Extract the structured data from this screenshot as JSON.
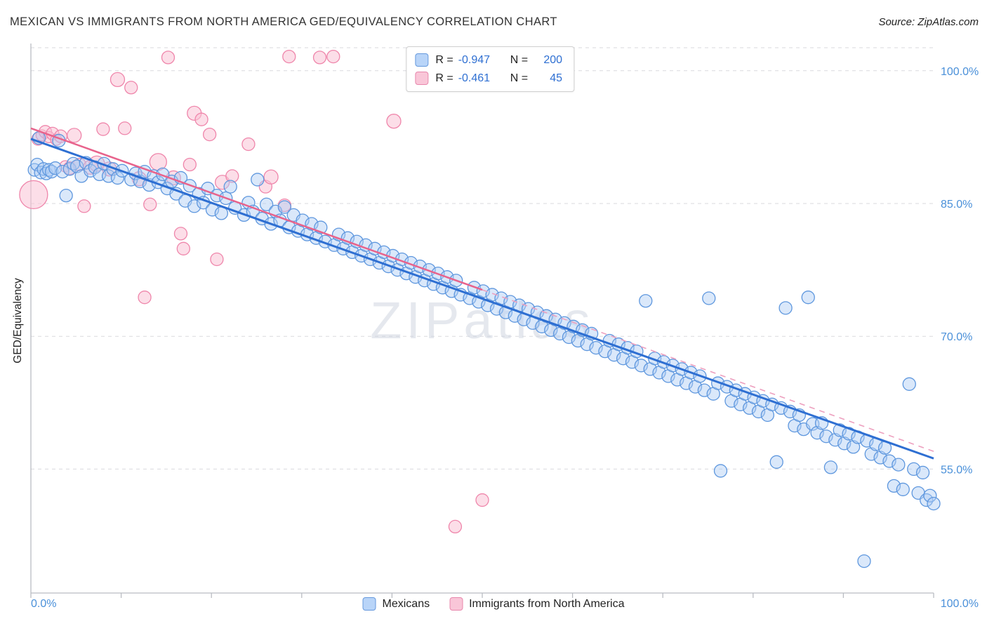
{
  "header": {
    "title": "MEXICAN VS IMMIGRANTS FROM NORTH AMERICA GED/EQUIVALENCY CORRELATION CHART",
    "source": "Source: ZipAtlas.com"
  },
  "watermark": "ZIPatlas",
  "axes": {
    "y_label": "GED/Equivalency",
    "x_min_label": "0.0%",
    "x_max_label": "100.0%"
  },
  "legend": {
    "series": [
      {
        "label": "Mexicans",
        "r_label": "R =",
        "r": "-0.947",
        "n_label": "N =",
        "n": "200"
      },
      {
        "label": "Immigrants from North America",
        "r_label": "R =",
        "r": "-0.461",
        "n_label": "N =",
        "n": "45"
      }
    ]
  },
  "colors": {
    "blue_stroke": "#5e97de",
    "blue_fill": "#aecdf3",
    "blue_trend": "#2e6fd2",
    "pink_stroke": "#ef86ab",
    "pink_fill": "#f9c2d6",
    "pink_trend": "#e8638c",
    "axis_label_blue": "#4a90d9",
    "grid": "#dadade"
  },
  "chart_data": {
    "type": "scatter",
    "title": "MEXICAN VS IMMIGRANTS FROM NORTH AMERICA GED/EQUIVALENCY CORRELATION CHART",
    "xlabel": "",
    "ylabel": "GED/Equivalency",
    "x_range": [
      0,
      100
    ],
    "y_range": [
      41,
      102.6
    ],
    "grid": true,
    "legend_position": "top-center",
    "y_ticks": [
      {
        "v": 100,
        "label": "100.0%"
      },
      {
        "v": 85,
        "label": "85.0%"
      },
      {
        "v": 70,
        "label": "70.0%"
      },
      {
        "v": 55,
        "label": "55.0%"
      }
    ],
    "series": [
      {
        "name": "Mexicans",
        "R": -0.947,
        "N": 200,
        "points": [
          [
            0.4,
            88.8
          ],
          [
            0.7,
            89.4
          ],
          [
            0.9,
            92.4
          ],
          [
            1.1,
            88.5
          ],
          [
            1.4,
            88.9
          ],
          [
            1.7,
            88.4
          ],
          [
            2.0,
            88.8
          ],
          [
            2.3,
            88.6
          ],
          [
            2.7,
            89.0
          ],
          [
            3.1,
            92.1
          ],
          [
            3.5,
            88.6
          ],
          [
            3.9,
            85.9
          ],
          [
            4.3,
            88.9
          ],
          [
            4.7,
            89.5
          ],
          [
            5.1,
            89.2
          ],
          [
            5.6,
            88.1
          ],
          [
            6.1,
            89.6
          ],
          [
            6.6,
            88.7
          ],
          [
            7.1,
            89.1
          ],
          [
            7.6,
            88.3
          ],
          [
            8.1,
            89.5
          ],
          [
            8.6,
            88.1
          ],
          [
            9.1,
            88.9
          ],
          [
            9.6,
            87.9
          ],
          [
            10.1,
            88.7
          ],
          [
            11.1,
            87.7
          ],
          [
            11.6,
            88.4
          ],
          [
            12.1,
            87.5
          ],
          [
            12.6,
            88.6
          ],
          [
            13.1,
            87.1
          ],
          [
            13.6,
            88.1
          ],
          [
            14.1,
            87.4
          ],
          [
            14.6,
            88.3
          ],
          [
            15.1,
            86.7
          ],
          [
            15.6,
            87.5
          ],
          [
            16.1,
            86.1
          ],
          [
            16.6,
            87.9
          ],
          [
            17.1,
            85.3
          ],
          [
            17.6,
            87.0
          ],
          [
            18.1,
            84.7
          ],
          [
            18.6,
            86.1
          ],
          [
            19.1,
            85.1
          ],
          [
            19.6,
            86.7
          ],
          [
            20.1,
            84.3
          ],
          [
            20.6,
            85.9
          ],
          [
            21.1,
            83.9
          ],
          [
            21.6,
            85.6
          ],
          [
            22.1,
            86.9
          ],
          [
            22.6,
            84.5
          ],
          [
            23.6,
            83.7
          ],
          [
            24.1,
            85.1
          ],
          [
            24.6,
            84.1
          ],
          [
            25.1,
            87.7
          ],
          [
            25.6,
            83.3
          ],
          [
            26.1,
            84.9
          ],
          [
            26.6,
            82.7
          ],
          [
            27.1,
            84.1
          ],
          [
            27.6,
            83.1
          ],
          [
            28.1,
            84.6
          ],
          [
            28.6,
            82.3
          ],
          [
            29.1,
            83.7
          ],
          [
            29.6,
            81.9
          ],
          [
            30.1,
            83.1
          ],
          [
            30.6,
            81.5
          ],
          [
            31.1,
            82.7
          ],
          [
            31.6,
            81.1
          ],
          [
            32.1,
            82.3
          ],
          [
            32.6,
            80.7
          ],
          [
            33.6,
            80.3
          ],
          [
            34.1,
            81.5
          ],
          [
            34.6,
            79.9
          ],
          [
            35.1,
            81.1
          ],
          [
            35.6,
            79.5
          ],
          [
            36.1,
            80.7
          ],
          [
            36.6,
            79.1
          ],
          [
            37.1,
            80.3
          ],
          [
            37.6,
            78.7
          ],
          [
            38.1,
            79.9
          ],
          [
            38.6,
            78.3
          ],
          [
            39.1,
            79.5
          ],
          [
            39.6,
            77.9
          ],
          [
            40.1,
            79.1
          ],
          [
            40.6,
            77.5
          ],
          [
            41.1,
            78.7
          ],
          [
            41.6,
            77.1
          ],
          [
            42.1,
            78.3
          ],
          [
            42.6,
            76.7
          ],
          [
            43.1,
            77.9
          ],
          [
            43.6,
            76.3
          ],
          [
            44.1,
            77.5
          ],
          [
            44.6,
            75.9
          ],
          [
            45.1,
            77.1
          ],
          [
            45.6,
            75.5
          ],
          [
            46.1,
            76.7
          ],
          [
            46.6,
            75.1
          ],
          [
            47.1,
            76.3
          ],
          [
            47.6,
            74.7
          ],
          [
            48.6,
            74.3
          ],
          [
            49.1,
            75.5
          ],
          [
            49.6,
            73.9
          ],
          [
            50.1,
            75.1
          ],
          [
            50.6,
            73.5
          ],
          [
            51.1,
            74.7
          ],
          [
            51.6,
            73.1
          ],
          [
            52.1,
            74.3
          ],
          [
            52.6,
            72.7
          ],
          [
            53.1,
            73.9
          ],
          [
            53.6,
            72.3
          ],
          [
            54.1,
            73.5
          ],
          [
            54.6,
            71.9
          ],
          [
            55.1,
            73.1
          ],
          [
            55.6,
            71.5
          ],
          [
            56.1,
            72.7
          ],
          [
            56.6,
            71.1
          ],
          [
            57.1,
            72.3
          ],
          [
            57.6,
            70.7
          ],
          [
            58.1,
            71.9
          ],
          [
            58.6,
            70.3
          ],
          [
            59.1,
            71.5
          ],
          [
            59.6,
            69.9
          ],
          [
            60.1,
            71.1
          ],
          [
            60.6,
            69.5
          ],
          [
            61.1,
            70.7
          ],
          [
            61.6,
            69.1
          ],
          [
            62.1,
            70.3
          ],
          [
            62.6,
            68.7
          ],
          [
            63.6,
            68.3
          ],
          [
            64.1,
            69.5
          ],
          [
            64.6,
            67.9
          ],
          [
            65.1,
            69.1
          ],
          [
            65.6,
            67.5
          ],
          [
            66.1,
            68.7
          ],
          [
            66.6,
            67.1
          ],
          [
            67.1,
            68.3
          ],
          [
            67.6,
            66.7
          ],
          [
            68.1,
            74.0
          ],
          [
            68.6,
            66.3
          ],
          [
            69.1,
            67.5
          ],
          [
            69.6,
            65.9
          ],
          [
            70.1,
            67.1
          ],
          [
            70.6,
            65.5
          ],
          [
            71.1,
            66.7
          ],
          [
            71.6,
            65.1
          ],
          [
            72.1,
            66.3
          ],
          [
            72.6,
            64.7
          ],
          [
            73.1,
            65.9
          ],
          [
            73.6,
            64.3
          ],
          [
            74.1,
            65.5
          ],
          [
            74.6,
            63.9
          ],
          [
            75.1,
            74.3
          ],
          [
            75.6,
            63.5
          ],
          [
            76.1,
            64.7
          ],
          [
            76.4,
            54.8
          ],
          [
            77.1,
            64.3
          ],
          [
            77.6,
            62.7
          ],
          [
            78.1,
            63.9
          ],
          [
            78.6,
            62.3
          ],
          [
            79.1,
            63.5
          ],
          [
            79.6,
            61.9
          ],
          [
            80.1,
            63.1
          ],
          [
            80.6,
            61.5
          ],
          [
            81.1,
            62.7
          ],
          [
            81.6,
            61.1
          ],
          [
            82.1,
            62.3
          ],
          [
            82.6,
            55.8
          ],
          [
            83.1,
            61.9
          ],
          [
            83.6,
            73.2
          ],
          [
            84.1,
            61.5
          ],
          [
            84.6,
            59.9
          ],
          [
            85.1,
            61.1
          ],
          [
            85.6,
            59.5
          ],
          [
            86.1,
            74.4
          ],
          [
            86.6,
            60.1
          ],
          [
            87.1,
            59.1
          ],
          [
            87.6,
            60.2
          ],
          [
            88.1,
            58.7
          ],
          [
            88.6,
            55.2
          ],
          [
            89.1,
            58.3
          ],
          [
            89.6,
            59.4
          ],
          [
            90.1,
            57.9
          ],
          [
            90.6,
            59.0
          ],
          [
            91.1,
            57.5
          ],
          [
            91.6,
            58.6
          ],
          [
            92.3,
            44.6
          ],
          [
            92.6,
            58.2
          ],
          [
            93.1,
            56.7
          ],
          [
            93.6,
            57.8
          ],
          [
            94.1,
            56.3
          ],
          [
            94.6,
            57.4
          ],
          [
            95.1,
            55.9
          ],
          [
            95.6,
            53.1
          ],
          [
            96.1,
            55.5
          ],
          [
            96.6,
            52.7
          ],
          [
            97.3,
            64.6
          ],
          [
            97.8,
            55.0
          ],
          [
            98.3,
            52.3
          ],
          [
            98.8,
            54.6
          ],
          [
            99.2,
            51.5
          ],
          [
            99.6,
            52.0
          ],
          [
            100.0,
            51.1
          ]
        ]
      },
      {
        "name": "Immigrants from North America",
        "R": -0.461,
        "N": 45,
        "points": [
          [
            0.3,
            86.0,
            20
          ],
          [
            0.8,
            92.3,
            9
          ],
          [
            1.2,
            92.7,
            8
          ],
          [
            1.6,
            93.1,
            9
          ],
          [
            2.0,
            92.5,
            8
          ],
          [
            2.4,
            92.9,
            9
          ],
          [
            2.8,
            92.2,
            8
          ],
          [
            3.3,
            92.6,
            9
          ],
          [
            3.8,
            89.2,
            8
          ],
          [
            4.3,
            89.0,
            9
          ],
          [
            4.8,
            92.7,
            10
          ],
          [
            5.4,
            89.4,
            9
          ],
          [
            5.9,
            84.7,
            9
          ],
          [
            6.6,
            89.1,
            10
          ],
          [
            7.3,
            89.5,
            11
          ],
          [
            8.0,
            93.4,
            9
          ],
          [
            8.7,
            88.9,
            10
          ],
          [
            9.6,
            99.0,
            10
          ],
          [
            10.4,
            93.5,
            9
          ],
          [
            11.1,
            98.1,
            9
          ],
          [
            12.0,
            87.8,
            10
          ],
          [
            12.6,
            74.4,
            9
          ],
          [
            13.2,
            84.9,
            9
          ],
          [
            14.1,
            89.7,
            12
          ],
          [
            15.2,
            101.5,
            9
          ],
          [
            15.8,
            87.9,
            10
          ],
          [
            16.6,
            81.6,
            9
          ],
          [
            16.9,
            79.9,
            9
          ],
          [
            17.6,
            89.4,
            9
          ],
          [
            18.1,
            95.2,
            10
          ],
          [
            18.9,
            94.5,
            9
          ],
          [
            19.8,
            92.8,
            9
          ],
          [
            20.6,
            78.7,
            9
          ],
          [
            21.2,
            87.4,
            10
          ],
          [
            22.3,
            88.1,
            9
          ],
          [
            24.1,
            91.7,
            9
          ],
          [
            26.0,
            86.9,
            9
          ],
          [
            26.6,
            88.0,
            10
          ],
          [
            28.1,
            84.8,
            9
          ],
          [
            28.6,
            101.6,
            9
          ],
          [
            32.0,
            101.5,
            9
          ],
          [
            33.5,
            101.6,
            9
          ],
          [
            40.2,
            94.3,
            10
          ],
          [
            47.0,
            48.5,
            9
          ],
          [
            50.0,
            51.5,
            9
          ]
        ]
      }
    ],
    "trend": {
      "blue": {
        "x0": 0,
        "y0": 92.3,
        "x1": 100,
        "y1": 56.2
      },
      "pink": {
        "x0": 0,
        "y0": 93.5,
        "x1": 100,
        "y1": 57.0,
        "solid_until": 50
      }
    }
  }
}
